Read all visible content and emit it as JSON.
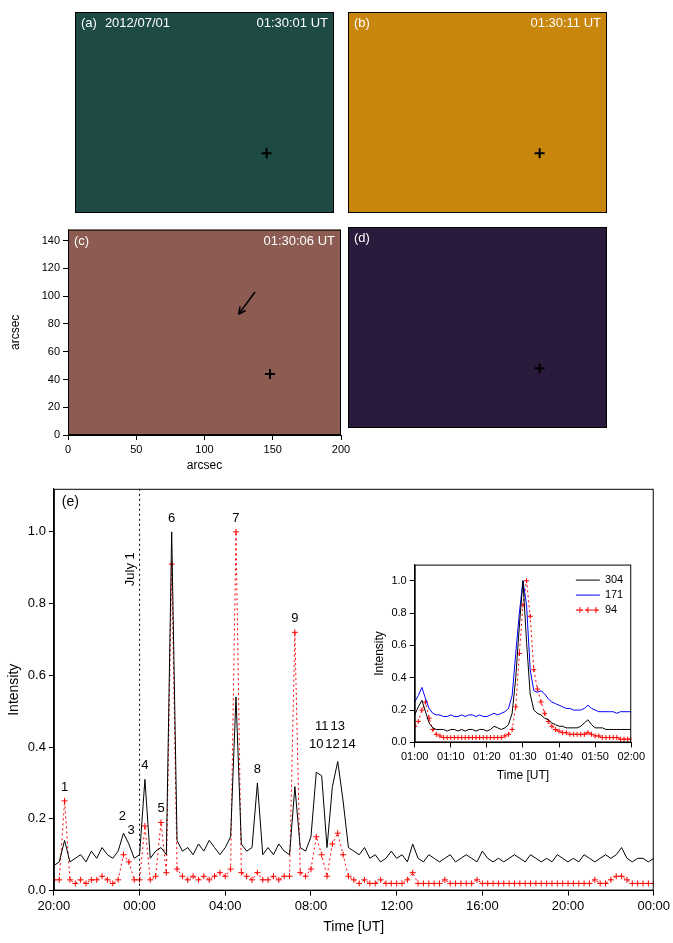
{
  "chart_data": [
    {
      "type": "image",
      "label": "(a)",
      "date": "2012/07/01",
      "time": "01:30:01 UT",
      "color": "#1d4a45",
      "xlim": [
        0,
        200
      ],
      "ylim": [
        0,
        148
      ],
      "tick_labels": false,
      "marker": "cross",
      "x": [
        148
      ],
      "values": [
        44
      ]
    },
    {
      "type": "image",
      "label": "(b)",
      "time": "01:30:11 UT",
      "color": "#c8860c",
      "xlim": [
        0,
        200
      ],
      "ylim": [
        0,
        148
      ],
      "tick_labels": false,
      "marker": "cross",
      "x": [
        148
      ],
      "values": [
        44
      ]
    },
    {
      "type": "image",
      "label": "(c)",
      "time": "01:30:06 UT",
      "color": "#8c5c52",
      "xlim": [
        0,
        200
      ],
      "ylim": [
        0,
        148
      ],
      "xticks": [
        0,
        50,
        100,
        150,
        200
      ],
      "yticks": [
        0,
        20,
        40,
        60,
        80,
        100,
        120,
        140
      ],
      "xlabel": "arcsec",
      "ylabel": "arcsec",
      "marker": "cross",
      "x": [
        148
      ],
      "values": [
        44
      ],
      "arrow": {
        "x": [
          137,
          125
        ],
        "y": [
          103,
          87
        ]
      }
    },
    {
      "type": "image",
      "label": "(d)",
      "color": "#2a1a3c",
      "xlim": [
        0,
        200
      ],
      "ylim": [
        0,
        148
      ],
      "tick_labels": false,
      "marker": "cross",
      "x": [
        148
      ],
      "values": [
        44
      ]
    },
    {
      "type": "line",
      "label": "(e)",
      "xlabel": "Time [UT]",
      "ylabel": "Intensity",
      "xlim": [
        -4,
        24
      ],
      "xticks": [
        {
          "value": -4,
          "label": "20:00"
        },
        {
          "value": 0,
          "label": "00:00"
        },
        {
          "value": 4,
          "label": "04:00"
        },
        {
          "value": 8,
          "label": "08:00"
        },
        {
          "value": 12,
          "label": "12:00"
        },
        {
          "value": 16,
          "label": "16:00"
        },
        {
          "value": 20,
          "label": "20:00"
        },
        {
          "value": 24,
          "label": "00:00"
        }
      ],
      "ylim": [
        0,
        1.12
      ],
      "yticks": [
        {
          "value": 0,
          "label": "0.0"
        },
        {
          "value": 0.2,
          "label": "0.2"
        },
        {
          "value": 0.4,
          "label": "0.4"
        },
        {
          "value": 0.6,
          "label": "0.6"
        },
        {
          "value": 0.8,
          "label": "0.8"
        },
        {
          "value": 1,
          "label": "1.0"
        }
      ],
      "x": [
        -4,
        -3.75,
        -3.5,
        -3.25,
        -3,
        -2.75,
        -2.5,
        -2.25,
        -2,
        -1.75,
        -1.5,
        -1.25,
        -1,
        -0.75,
        -0.5,
        -0.25,
        0,
        0.25,
        0.5,
        0.75,
        1,
        1.25,
        1.5,
        1.75,
        2,
        2.25,
        2.5,
        2.75,
        3,
        3.25,
        3.5,
        3.75,
        4,
        4.25,
        4.5,
        4.75,
        5,
        5.25,
        5.5,
        5.75,
        6,
        6.25,
        6.5,
        6.75,
        7,
        7.25,
        7.5,
        7.75,
        8,
        8.25,
        8.5,
        8.75,
        9,
        9.25,
        9.5,
        9.75,
        10,
        10.25,
        10.5,
        10.75,
        11,
        11.25,
        11.5,
        11.75,
        12,
        12.25,
        12.5,
        12.75,
        13,
        13.25,
        13.5,
        13.75,
        14,
        14.25,
        14.5,
        14.75,
        15,
        15.25,
        15.5,
        15.75,
        16,
        16.25,
        16.5,
        16.75,
        17,
        17.25,
        17.5,
        17.75,
        18,
        18.25,
        18.5,
        18.75,
        19,
        19.25,
        19.5,
        19.75,
        20,
        20.25,
        20.5,
        20.75,
        21,
        21.25,
        21.5,
        21.75,
        22,
        22.25,
        22.5,
        22.75,
        23,
        23.25,
        23.5,
        23.75,
        24
      ],
      "series": [
        {
          "color": "#000000",
          "line_style": "solid",
          "values": [
            0.07,
            0.08,
            0.14,
            0.08,
            0.09,
            0.1,
            0.08,
            0.11,
            0.09,
            0.12,
            0.1,
            0.09,
            0.11,
            0.16,
            0.13,
            0.09,
            0.1,
            0.31,
            0.09,
            0.11,
            0.12,
            0.1,
            1.0,
            0.14,
            0.11,
            0.12,
            0.1,
            0.13,
            0.11,
            0.14,
            0.12,
            0.1,
            0.12,
            0.15,
            0.54,
            0.13,
            0.11,
            0.12,
            0.3,
            0.1,
            0.12,
            0.1,
            0.13,
            0.11,
            0.1,
            0.29,
            0.12,
            0.11,
            0.15,
            0.33,
            0.32,
            0.12,
            0.29,
            0.36,
            0.25,
            0.12,
            0.11,
            0.1,
            0.12,
            0.09,
            0.1,
            0.08,
            0.09,
            0.11,
            0.09,
            0.1,
            0.08,
            0.13,
            0.09,
            0.08,
            0.1,
            0.09,
            0.08,
            0.09,
            0.1,
            0.08,
            0.09,
            0.1,
            0.09,
            0.08,
            0.11,
            0.09,
            0.08,
            0.09,
            0.08,
            0.09,
            0.1,
            0.09,
            0.08,
            0.1,
            0.09,
            0.08,
            0.09,
            0.08,
            0.1,
            0.09,
            0.08,
            0.09,
            0.08,
            0.1,
            0.09,
            0.08,
            0.09,
            0.1,
            0.09,
            0.1,
            0.12,
            0.09,
            0.08,
            0.09,
            0.09,
            0.08,
            0.09
          ]
        },
        {
          "color": "#ff0000",
          "line_style": "dotted",
          "marker": "cross",
          "values": [
            0.03,
            0.03,
            0.25,
            0.03,
            0.02,
            0.03,
            0.02,
            0.03,
            0.03,
            0.04,
            0.03,
            0.02,
            0.03,
            0.1,
            0.08,
            0.03,
            0.03,
            0.18,
            0.03,
            0.04,
            0.19,
            0.05,
            0.91,
            0.06,
            0.04,
            0.03,
            0.04,
            0.03,
            0.04,
            0.03,
            0.04,
            0.05,
            0.04,
            0.06,
            1.0,
            0.05,
            0.04,
            0.03,
            0.05,
            0.03,
            0.03,
            0.04,
            0.03,
            0.04,
            0.04,
            0.72,
            0.05,
            0.04,
            0.06,
            0.15,
            0.1,
            0.04,
            0.13,
            0.16,
            0.1,
            0.04,
            0.03,
            0.02,
            0.03,
            0.02,
            0.02,
            0.03,
            0.02,
            0.02,
            0.02,
            0.02,
            0.03,
            0.05,
            0.02,
            0.02,
            0.02,
            0.02,
            0.02,
            0.03,
            0.02,
            0.02,
            0.02,
            0.02,
            0.02,
            0.03,
            0.02,
            0.02,
            0.02,
            0.02,
            0.02,
            0.02,
            0.02,
            0.02,
            0.02,
            0.02,
            0.02,
            0.02,
            0.02,
            0.02,
            0.02,
            0.02,
            0.02,
            0.02,
            0.02,
            0.02,
            0.02,
            0.03,
            0.02,
            0.02,
            0.03,
            0.04,
            0.04,
            0.03,
            0.02,
            0.02,
            0.02,
            0.02,
            0.02
          ]
        }
      ],
      "annotations": [
        {
          "text": "1",
          "x": -3.5,
          "y": 0.27
        },
        {
          "text": "2",
          "x": -0.8,
          "y": 0.19
        },
        {
          "text": "3",
          "x": -0.4,
          "y": 0.15
        },
        {
          "text": "4",
          "x": 0.25,
          "y": 0.33
        },
        {
          "text": "5",
          "x": 1.0,
          "y": 0.21
        },
        {
          "text": "6",
          "x": 1.5,
          "y": 1.02
        },
        {
          "text": "7",
          "x": 4.5,
          "y": 1.02
        },
        {
          "text": "8",
          "x": 5.5,
          "y": 0.32
        },
        {
          "text": "9",
          "x": 7.25,
          "y": 0.74
        },
        {
          "text": "10",
          "x": 8.25,
          "y": 0.39
        },
        {
          "text": "11",
          "x": 8.5,
          "y": 0.44
        },
        {
          "text": "12",
          "x": 9.0,
          "y": 0.39
        },
        {
          "text": "13",
          "x": 9.25,
          "y": 0.44
        },
        {
          "text": "14",
          "x": 9.75,
          "y": 0.39
        }
      ],
      "vline": {
        "x": 0,
        "text": "July 1",
        "line_style": "dotted"
      }
    },
    {
      "type": "line",
      "legend": "upper right",
      "xlabel": "Time [UT]",
      "ylabel": "Intensity",
      "xlim": [
        0,
        60
      ],
      "xticks": [
        {
          "value": 0,
          "label": "01:00"
        },
        {
          "value": 10,
          "label": "01:10"
        },
        {
          "value": 20,
          "label": "01:20"
        },
        {
          "value": 30,
          "label": "01:30"
        },
        {
          "value": 40,
          "label": "01:40"
        },
        {
          "value": 50,
          "label": "01:50"
        },
        {
          "value": 60,
          "label": "02:00"
        }
      ],
      "ylim": [
        0,
        1.1
      ],
      "yticks": [
        {
          "value": 0,
          "label": "0.0"
        },
        {
          "value": 0.2,
          "label": "0.2"
        },
        {
          "value": 0.4,
          "label": "0.4"
        },
        {
          "value": 0.6,
          "label": "0.6"
        },
        {
          "value": 0.8,
          "label": "0.8"
        },
        {
          "value": 1,
          "label": "1.0"
        }
      ],
      "x": [
        0,
        1,
        2,
        3,
        4,
        5,
        6,
        7,
        8,
        9,
        10,
        11,
        12,
        13,
        14,
        15,
        16,
        17,
        18,
        19,
        20,
        21,
        22,
        23,
        24,
        25,
        26,
        27,
        28,
        29,
        30,
        31,
        32,
        33,
        34,
        35,
        36,
        37,
        38,
        39,
        40,
        41,
        42,
        43,
        44,
        45,
        46,
        47,
        48,
        49,
        50,
        51,
        52,
        53,
        54,
        55,
        56,
        57,
        58,
        59,
        60
      ],
      "series": [
        {
          "name": "304",
          "color": "#000000",
          "line_style": "solid",
          "values": [
            0.17,
            0.22,
            0.26,
            0.19,
            0.12,
            0.09,
            0.08,
            0.08,
            0.08,
            0.07,
            0.08,
            0.08,
            0.07,
            0.08,
            0.07,
            0.08,
            0.08,
            0.07,
            0.08,
            0.08,
            0.07,
            0.08,
            0.1,
            0.09,
            0.08,
            0.09,
            0.11,
            0.18,
            0.4,
            0.72,
            1.0,
            0.62,
            0.3,
            0.2,
            0.18,
            0.17,
            0.15,
            0.14,
            0.12,
            0.11,
            0.1,
            0.1,
            0.09,
            0.09,
            0.09,
            0.09,
            0.1,
            0.12,
            0.14,
            0.11,
            0.09,
            0.09,
            0.09,
            0.08,
            0.08,
            0.08,
            0.08,
            0.08,
            0.08,
            0.08,
            0.08
          ]
        },
        {
          "name": "171",
          "color": "#0000ff",
          "line_style": "solid",
          "values": [
            0.25,
            0.29,
            0.34,
            0.27,
            0.21,
            0.18,
            0.17,
            0.17,
            0.16,
            0.16,
            0.17,
            0.16,
            0.16,
            0.17,
            0.16,
            0.17,
            0.17,
            0.16,
            0.17,
            0.16,
            0.16,
            0.17,
            0.18,
            0.17,
            0.18,
            0.19,
            0.21,
            0.29,
            0.55,
            0.8,
            1.0,
            0.85,
            0.45,
            0.32,
            0.31,
            0.32,
            0.3,
            0.27,
            0.25,
            0.24,
            0.23,
            0.22,
            0.21,
            0.21,
            0.2,
            0.2,
            0.2,
            0.21,
            0.23,
            0.21,
            0.2,
            0.19,
            0.19,
            0.19,
            0.19,
            0.19,
            0.18,
            0.19,
            0.19,
            0.19,
            0.19
          ]
        },
        {
          "name": "94",
          "color": "#ff0000",
          "line_style": "dotted",
          "marker": "cross",
          "values": [
            0.1,
            0.13,
            0.2,
            0.25,
            0.15,
            0.08,
            0.05,
            0.04,
            0.03,
            0.03,
            0.03,
            0.03,
            0.03,
            0.03,
            0.03,
            0.03,
            0.03,
            0.03,
            0.03,
            0.03,
            0.03,
            0.03,
            0.03,
            0.03,
            0.03,
            0.04,
            0.05,
            0.08,
            0.22,
            0.55,
            0.85,
            1.0,
            0.78,
            0.45,
            0.33,
            0.25,
            0.18,
            0.13,
            0.1,
            0.08,
            0.07,
            0.06,
            0.06,
            0.05,
            0.05,
            0.05,
            0.05,
            0.05,
            0.06,
            0.05,
            0.04,
            0.04,
            0.03,
            0.03,
            0.03,
            0.03,
            0.03,
            0.02,
            0.02,
            0.02,
            0.02
          ]
        }
      ]
    }
  ]
}
